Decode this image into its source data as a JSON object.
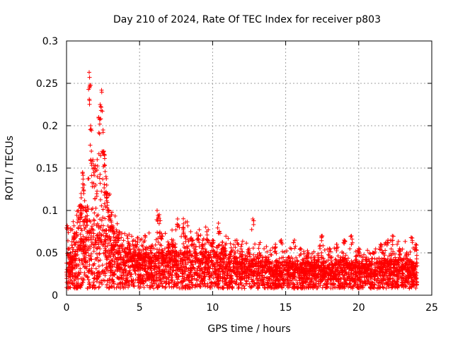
{
  "chart_data": {
    "type": "scatter",
    "title": "Day 210 of 2024, Rate Of TEC Index for receiver p803",
    "xlabel": "GPS time / hours",
    "ylabel": "ROTI / TECUs",
    "xlim": [
      0,
      25
    ],
    "ylim": [
      0,
      0.3
    ],
    "xticks": [
      0,
      5,
      10,
      15,
      20,
      25
    ],
    "xtick_labels": [
      "0",
      "5",
      "10",
      "15",
      "20",
      "25"
    ],
    "yticks": [
      0,
      0.05,
      0.1,
      0.15,
      0.2,
      0.25,
      0.3
    ],
    "ytick_labels": [
      "0",
      "0.05",
      "0.1",
      "0.15",
      "0.2",
      "0.25",
      "0.3"
    ],
    "grid": true,
    "marker": "+",
    "color": "#ff0000",
    "series": [
      {
        "name": "ROTI",
        "x": [
          0.05,
          0.1,
          0.15,
          0.3,
          0.5,
          0.8,
          0.9,
          1.0,
          1.1,
          1.2,
          1.3,
          1.4,
          1.55,
          1.6,
          1.65,
          1.7,
          1.8,
          1.9,
          2.0,
          2.1,
          2.2,
          2.3,
          2.4,
          2.5,
          2.55,
          2.6,
          2.7,
          2.75,
          2.8,
          2.9,
          3.0,
          3.1,
          3.2,
          3.3,
          3.5,
          3.8,
          4.0,
          4.3,
          4.6,
          5.0,
          5.4,
          5.8,
          6.2,
          6.35,
          6.5,
          7.0,
          7.3,
          7.6,
          8.0,
          8.5,
          9.0,
          9.3,
          9.6,
          10.0,
          10.4,
          10.8,
          11.5,
          12.0,
          12.5,
          12.75,
          13.2,
          13.8,
          14.3,
          14.7,
          15.2,
          15.6,
          16.0,
          16.5,
          17.0,
          17.5,
          18.0,
          18.5,
          19.0,
          19.5,
          20.0,
          20.5,
          21.0,
          21.5,
          22.0,
          22.3,
          22.8,
          23.3,
          23.6,
          23.9
        ],
        "y": [
          0.082,
          0.055,
          0.03,
          0.045,
          0.07,
          0.1,
          0.105,
          0.12,
          0.145,
          0.13,
          0.1,
          0.09,
          0.263,
          0.248,
          0.2,
          0.17,
          0.16,
          0.15,
          0.13,
          0.16,
          0.21,
          0.225,
          0.242,
          0.195,
          0.17,
          0.165,
          0.14,
          0.13,
          0.12,
          0.1,
          0.09,
          0.095,
          0.08,
          0.065,
          0.07,
          0.06,
          0.055,
          0.06,
          0.065,
          0.05,
          0.055,
          0.058,
          0.1,
          0.095,
          0.07,
          0.06,
          0.065,
          0.09,
          0.08,
          0.075,
          0.07,
          0.06,
          0.075,
          0.065,
          0.085,
          0.055,
          0.05,
          0.06,
          0.055,
          0.09,
          0.05,
          0.045,
          0.06,
          0.065,
          0.045,
          0.065,
          0.055,
          0.05,
          0.045,
          0.07,
          0.055,
          0.06,
          0.065,
          0.07,
          0.055,
          0.045,
          0.05,
          0.06,
          0.065,
          0.07,
          0.055,
          0.05,
          0.068,
          0.06
        ]
      }
    ],
    "envelope": {
      "x": [
        0,
        0.5,
        1.0,
        1.5,
        2.0,
        2.5,
        3.0,
        3.5,
        4.0,
        5.0,
        6.0,
        7.0,
        8.0,
        9.0,
        10.0,
        11.0,
        12.0,
        13.0,
        14.0,
        15.0,
        16.0,
        17.0,
        18.0,
        19.0,
        20.0,
        21.0,
        22.0,
        23.0,
        24.0
      ],
      "y_median": [
        0.02,
        0.03,
        0.05,
        0.06,
        0.06,
        0.07,
        0.05,
        0.04,
        0.035,
        0.03,
        0.032,
        0.035,
        0.035,
        0.035,
        0.035,
        0.03,
        0.025,
        0.025,
        0.022,
        0.022,
        0.022,
        0.022,
        0.02,
        0.025,
        0.02,
        0.02,
        0.025,
        0.025,
        0.02
      ],
      "y_high": [
        0.05,
        0.07,
        0.1,
        0.11,
        0.12,
        0.14,
        0.09,
        0.07,
        0.06,
        0.055,
        0.06,
        0.06,
        0.07,
        0.065,
        0.065,
        0.055,
        0.05,
        0.05,
        0.045,
        0.045,
        0.045,
        0.045,
        0.045,
        0.05,
        0.04,
        0.045,
        0.05,
        0.05,
        0.045
      ]
    }
  }
}
